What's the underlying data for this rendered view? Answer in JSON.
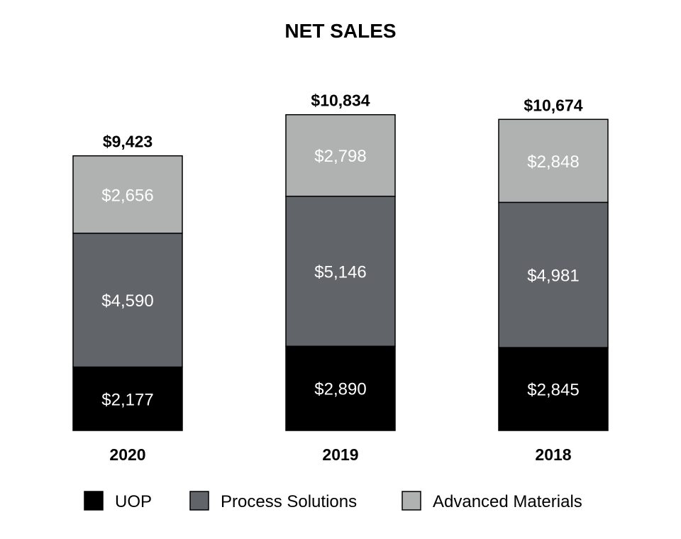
{
  "chart_data": {
    "type": "bar",
    "stacked": true,
    "title": "NET SALES",
    "categories": [
      "2020",
      "2019",
      "2018"
    ],
    "series": [
      {
        "name": "UOP",
        "color": "#000000",
        "values": [
          2177,
          2890,
          2845
        ],
        "labels": [
          "$2,177",
          "$2,890",
          "$2,845"
        ]
      },
      {
        "name": "Process Solutions",
        "color": "#616469",
        "values": [
          4590,
          5146,
          4981
        ],
        "labels": [
          "$4,590",
          "$5,146",
          "$4,981"
        ]
      },
      {
        "name": "Advanced Materials",
        "color": "#b0b1b1",
        "values": [
          2656,
          2798,
          2848
        ],
        "labels": [
          "$2,656",
          "$2,798",
          "$2,848"
        ]
      }
    ],
    "totals": [
      9423,
      10834,
      10674
    ],
    "total_labels": [
      "$9,423",
      "$10,834",
      "$10,674"
    ],
    "legend_position": "bottom",
    "grid": false,
    "xlabel": "",
    "ylabel": ""
  }
}
